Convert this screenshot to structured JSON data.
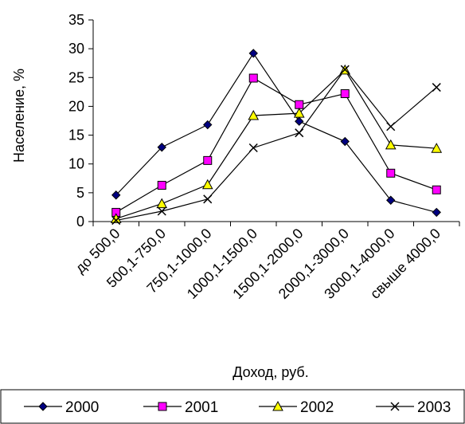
{
  "chart_data": {
    "type": "line",
    "xlabel": "Доход, руб.",
    "ylabel": "Население, %",
    "ylim": [
      0,
      35
    ],
    "yticks": [
      0,
      5,
      10,
      15,
      20,
      25,
      30,
      35
    ],
    "grid": false,
    "legend_position": "bottom",
    "categories": [
      "до 500,0",
      "500,1-750,0",
      "750,1-1000,0",
      "1000,1-1500,0",
      "1500,1-2000,0",
      "2000,1-3000,0",
      "3000,1-4000,0",
      "свыше 4000,0"
    ],
    "series": [
      {
        "name": "2000",
        "marker": "diamond",
        "color": "#000080",
        "values": [
          4.6,
          12.9,
          16.8,
          29.2,
          17.4,
          13.9,
          3.7,
          1.6
        ]
      },
      {
        "name": "2001",
        "marker": "square",
        "color": "#ff00ff",
        "values": [
          1.6,
          6.3,
          10.6,
          24.9,
          20.3,
          22.2,
          8.4,
          5.5
        ]
      },
      {
        "name": "2002",
        "marker": "triangle",
        "color": "#ffff00",
        "values": [
          0.5,
          3.1,
          6.4,
          18.4,
          18.8,
          26.3,
          13.3,
          12.7
        ]
      },
      {
        "name": "2003",
        "marker": "x",
        "color": "#000000",
        "values": [
          0.2,
          1.8,
          3.9,
          12.8,
          15.4,
          26.4,
          16.5,
          23.3
        ]
      }
    ]
  }
}
